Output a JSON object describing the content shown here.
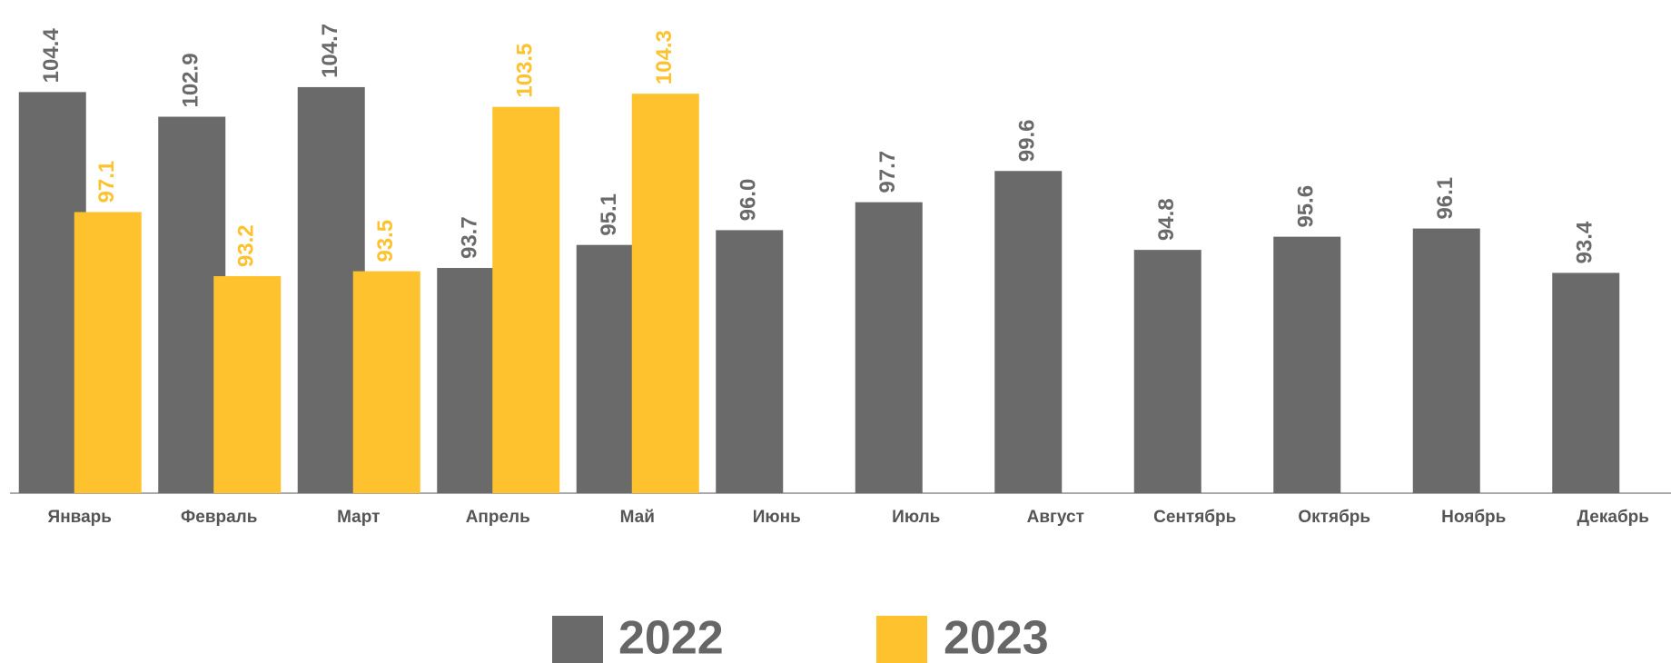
{
  "chart_data": {
    "type": "bar",
    "categories": [
      "Январь",
      "Февраль",
      "Март",
      "Апрель",
      "Май",
      "Июнь",
      "Июль",
      "Август",
      "Сентябрь",
      "Октябрь",
      "Ноябрь",
      "Декабрь"
    ],
    "series": [
      {
        "name": "2022",
        "color": "#6a6a6a",
        "values": [
          104.4,
          102.9,
          104.7,
          93.7,
          95.1,
          96.0,
          97.7,
          99.6,
          94.8,
          95.6,
          96.1,
          93.4
        ],
        "value_labels": [
          "104.4",
          "102.9",
          "104.7",
          "93.7",
          "95.1",
          "96.0",
          "97.7",
          "99.6",
          "94.8",
          "95.6",
          "96.1",
          "93.4"
        ]
      },
      {
        "name": "2023",
        "color": "#fdc22d",
        "values": [
          97.1,
          93.2,
          93.5,
          103.5,
          104.3,
          null,
          null,
          null,
          null,
          null,
          null,
          null
        ],
        "value_labels": [
          "97.1",
          "93.2",
          "93.5",
          "103.5",
          "104.3",
          null,
          null,
          null,
          null,
          null,
          null,
          null
        ]
      }
    ],
    "ylim": [
      80,
      110
    ],
    "grid": false,
    "legend": "bottom"
  }
}
